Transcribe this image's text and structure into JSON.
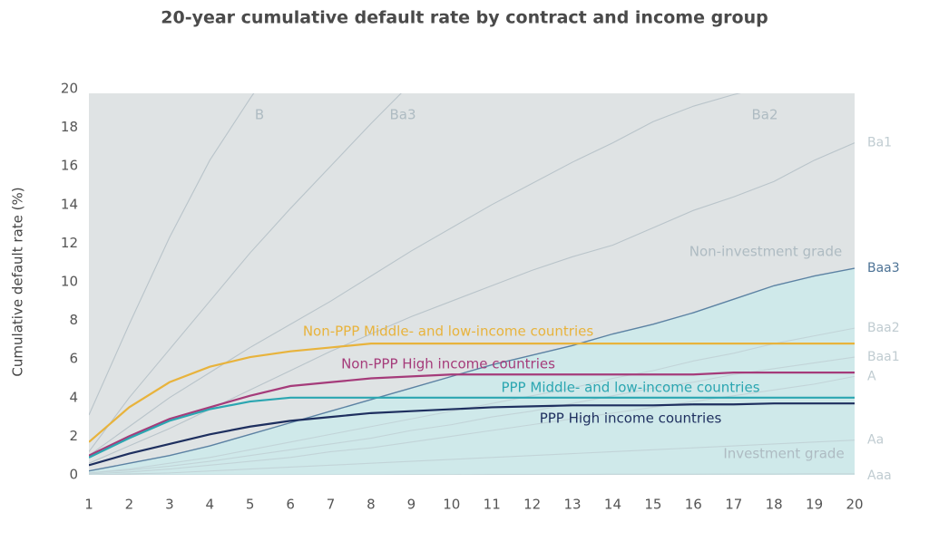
{
  "chart_data": {
    "type": "line",
    "title": "20-year cumulative default rate by contract and income group",
    "y_label": "Cumulative default rate (%)",
    "annotations": [
      "Non-investment grade",
      "Investment grade"
    ],
    "x": [
      1,
      2,
      3,
      4,
      5,
      6,
      7,
      8,
      9,
      10,
      11,
      12,
      13,
      14,
      15,
      16,
      17,
      18,
      19,
      20
    ],
    "xlim": [
      1,
      20
    ],
    "xticks": [
      1,
      2,
      3,
      4,
      5,
      6,
      7,
      8,
      9,
      10,
      11,
      12,
      13,
      14,
      15,
      16,
      17,
      18,
      19,
      20
    ],
    "ylim": [
      0,
      20
    ],
    "yticks": [
      0,
      2,
      4,
      6,
      8,
      10,
      12,
      14,
      16,
      18,
      20
    ],
    "grid": false,
    "fill_below": "Baa3",
    "fill_color": "#cfe9ea",
    "background_color": "#dfe3e4",
    "series": [
      {
        "name": "B",
        "color": "#b9c4ca",
        "values": [
          3.1,
          7.8,
          12.3,
          16.3,
          19.5,
          22.5,
          null,
          null,
          null,
          null,
          null,
          null,
          null,
          null,
          null,
          null,
          null,
          null,
          null,
          null
        ]
      },
      {
        "name": "Ba3",
        "color": "#b9c4ca",
        "values": [
          1.2,
          4.0,
          6.5,
          9.0,
          11.5,
          13.8,
          16.0,
          18.2,
          20.3,
          null,
          null,
          null,
          null,
          null,
          null,
          null,
          null,
          null,
          null,
          null
        ]
      },
      {
        "name": "Ba2",
        "color": "#b9c4ca",
        "values": [
          1.0,
          2.5,
          4.0,
          5.3,
          6.6,
          7.8,
          9.0,
          10.3,
          11.6,
          12.8,
          14.0,
          15.1,
          16.2,
          17.2,
          18.3,
          19.1,
          19.7,
          20.2,
          null,
          null
        ]
      },
      {
        "name": "Ba1",
        "color": "#b9c4ca",
        "values": [
          0.6,
          1.5,
          2.4,
          3.4,
          4.4,
          5.4,
          6.4,
          7.3,
          8.2,
          9.0,
          9.8,
          10.6,
          11.3,
          11.9,
          12.8,
          13.7,
          14.4,
          15.2,
          16.3,
          17.2
        ]
      },
      {
        "name": "Baa3",
        "color": "#5c82a3",
        "values": [
          0.2,
          0.6,
          1.0,
          1.5,
          2.1,
          2.7,
          3.3,
          3.9,
          4.5,
          5.1,
          5.7,
          6.2,
          6.7,
          7.3,
          7.8,
          8.4,
          9.1,
          9.8,
          10.3,
          10.7
        ]
      },
      {
        "name": "Baa2",
        "color": "#c2d4d8",
        "values": [
          0.1,
          0.3,
          0.6,
          0.9,
          1.3,
          1.7,
          2.1,
          2.5,
          2.9,
          3.3,
          3.7,
          4.1,
          4.5,
          5.0,
          5.4,
          5.9,
          6.3,
          6.8,
          7.2,
          7.6
        ]
      },
      {
        "name": "Baa1",
        "color": "#c2d4d8",
        "values": [
          0.1,
          0.25,
          0.45,
          0.7,
          1.0,
          1.3,
          1.6,
          1.9,
          2.3,
          2.6,
          3.0,
          3.3,
          3.7,
          4.1,
          4.5,
          4.8,
          5.2,
          5.5,
          5.8,
          6.1
        ]
      },
      {
        "name": "A",
        "color": "#c2d4d8",
        "values": [
          0.05,
          0.15,
          0.3,
          0.5,
          0.7,
          0.9,
          1.2,
          1.4,
          1.7,
          2.0,
          2.3,
          2.6,
          2.9,
          3.2,
          3.5,
          3.8,
          4.1,
          4.4,
          4.7,
          5.1
        ]
      },
      {
        "name": "Aa",
        "color": "#c2d4d8",
        "values": [
          0,
          0.05,
          0.1,
          0.2,
          0.3,
          0.4,
          0.5,
          0.6,
          0.7,
          0.8,
          0.9,
          1.0,
          1.1,
          1.2,
          1.3,
          1.4,
          1.5,
          1.6,
          1.7,
          1.8
        ]
      },
      {
        "name": "Aaa",
        "color": "#c2d4d8",
        "values": [
          0,
          0,
          0,
          0,
          0,
          0,
          0,
          0,
          0.01,
          0.01,
          0.02,
          0.02,
          0.02,
          0.03,
          0.03,
          0.03,
          0.04,
          0.04,
          0.05,
          0.05
        ]
      },
      {
        "name": "Non-PPP Middle- and low-income countries",
        "color": "#e8b33c",
        "values": [
          1.7,
          3.5,
          4.8,
          5.6,
          6.1,
          6.4,
          6.6,
          6.8,
          6.8,
          6.8,
          6.8,
          6.8,
          6.8,
          6.8,
          6.8,
          6.8,
          6.8,
          6.8,
          6.8,
          6.8
        ]
      },
      {
        "name": "Non-PPP High income countries",
        "color": "#a53b7a",
        "values": [
          1.0,
          2.0,
          2.9,
          3.5,
          4.1,
          4.6,
          4.8,
          5.0,
          5.1,
          5.2,
          5.2,
          5.2,
          5.2,
          5.2,
          5.2,
          5.2,
          5.3,
          5.3,
          5.3,
          5.3
        ]
      },
      {
        "name": "PPP Middle- and low-income countries",
        "color": "#2ba6b1",
        "values": [
          0.9,
          1.9,
          2.8,
          3.4,
          3.8,
          4.0,
          4.0,
          4.0,
          4.0,
          4.0,
          4.0,
          4.0,
          4.0,
          4.0,
          4.0,
          4.0,
          4.0,
          4.0,
          4.0,
          4.0
        ]
      },
      {
        "name": "PPP High income countries",
        "color": "#1e2f5f",
        "values": [
          0.5,
          1.1,
          1.6,
          2.1,
          2.5,
          2.8,
          3.0,
          3.2,
          3.3,
          3.4,
          3.5,
          3.55,
          3.6,
          3.6,
          3.6,
          3.65,
          3.65,
          3.7,
          3.7,
          3.7
        ]
      }
    ]
  }
}
